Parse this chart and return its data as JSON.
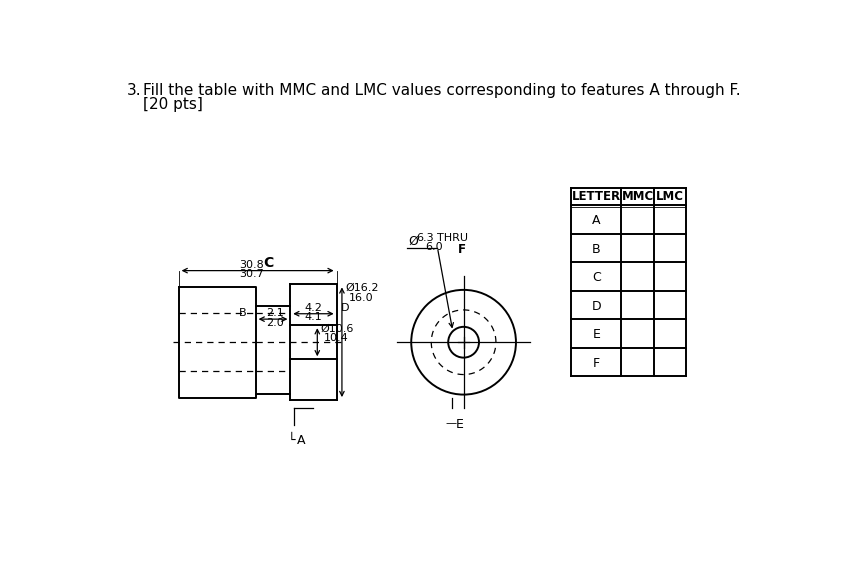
{
  "title_number": "3.",
  "title_text": "Fill the table with MMC and LMC values corresponding to features A through F.",
  "title_text2": "[20 pts]",
  "bg_color": "#ffffff",
  "table_headers": [
    "LETTER",
    "MMC",
    "LMC"
  ],
  "table_rows": [
    "A",
    "B",
    "C",
    "D",
    "E",
    "F"
  ],
  "phi": "Ø"
}
